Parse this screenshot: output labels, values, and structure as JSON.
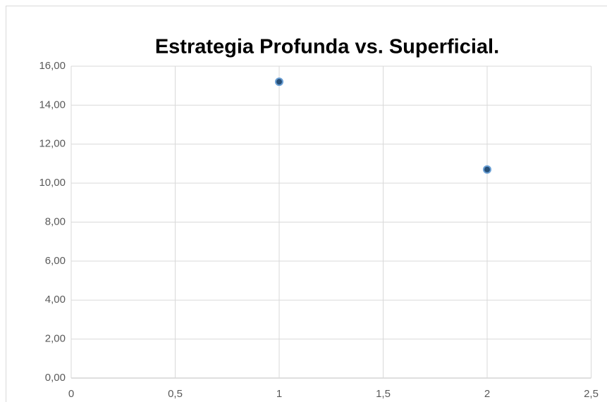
{
  "chart_data": {
    "type": "scatter",
    "title": "Estrategia Profunda vs. Superficial.",
    "x": [
      1,
      2
    ],
    "values": [
      15.2,
      10.7
    ],
    "color": "#264f78",
    "edge_color": "#6a9fd4",
    "xlim": [
      0,
      2.5
    ],
    "xticks": [
      0,
      {
        "value": 0.5,
        "label": "0,5"
      },
      1,
      {
        "value": 1.5,
        "label": "1,5"
      },
      2,
      {
        "value": 2.5,
        "label": "2,5"
      }
    ],
    "ylim": [
      0,
      16
    ],
    "yticks": [
      {
        "value": 0,
        "label": "0,00"
      },
      {
        "value": 2,
        "label": "2,00"
      },
      {
        "value": 4,
        "label": "4,00"
      },
      {
        "value": 6,
        "label": "6,00"
      },
      {
        "value": 8,
        "label": "8,00"
      },
      {
        "value": 10,
        "label": "10,00"
      },
      {
        "value": 12,
        "label": "12,00"
      },
      {
        "value": 14,
        "label": "14,00"
      },
      {
        "value": 16,
        "label": "16,00"
      }
    ],
    "grid": true
  }
}
